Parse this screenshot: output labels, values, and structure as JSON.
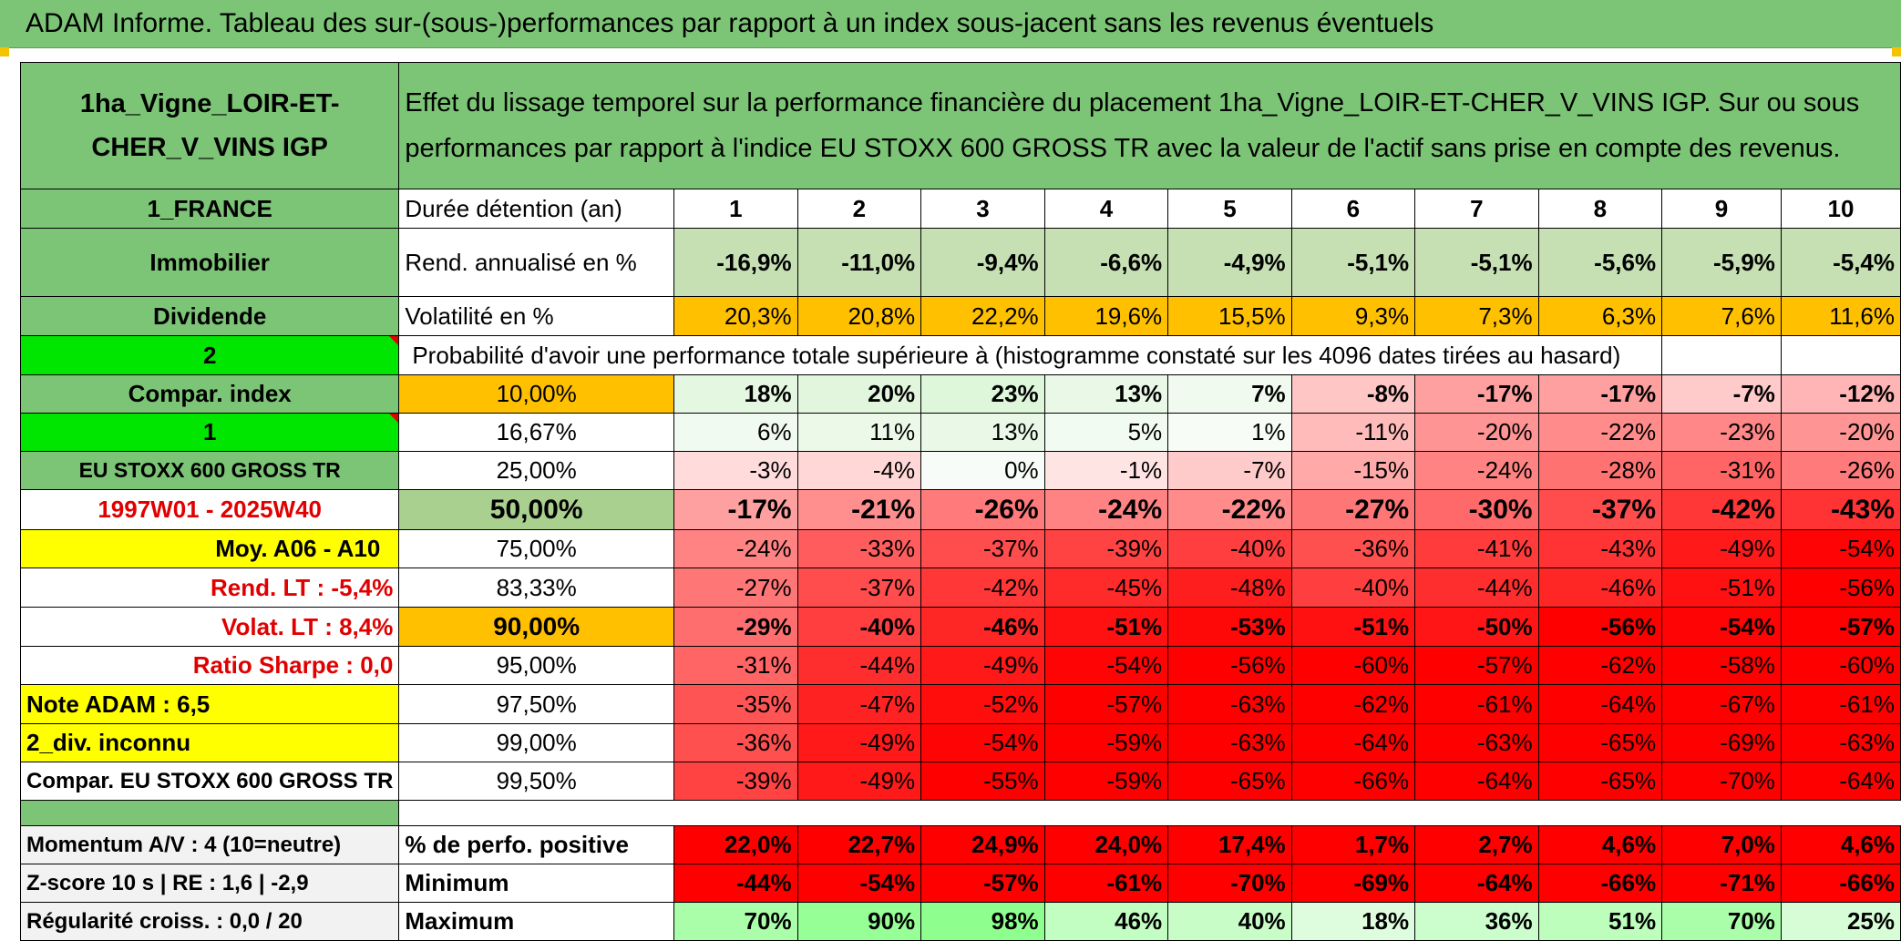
{
  "title": "ADAM Informe. Tableau des sur-(sous-)performances par rapport à un index sous-jacent sans les revenus éventuels",
  "asset_name": "1ha_Vigne_LOIR-ET-CHER_V_VINS IGP",
  "header_text": "Effet du lissage temporel sur la performance financière du placement 1ha_Vigne_LOIR-ET-CHER_V_VINS IGP. Sur ou sous performances par rapport à l'indice EU STOXX 600 GROSS TR avec la valeur de l'actif sans prise en compte des revenus.",
  "left": {
    "country": "1_FRANCE",
    "category": "Immobilier",
    "income": "Dividende",
    "sel2": "2",
    "compar": "Compar. index",
    "sel1": "1",
    "index_name": "EU STOXX 600 GROSS TR",
    "period": "1997W01 - 2025W40",
    "moy": "Moy. A06 - A10",
    "rend_lt": "Rend. LT :   -5,4%",
    "volat_lt": "Volat. LT :   8,4%",
    "sharpe": "Ratio Sharpe :    0,0",
    "note": "Note ADAM : 6,5",
    "div": "2_div. inconnu",
    "compar_full": "Compar. EU STOXX 600 GROSS TR",
    "momentum": "Momentum A/V : 4 (10=neutre)",
    "zscore": "Z-score 10 s | RE : 1,6 | -2,9",
    "regularite": "Régularité croiss. : 0,0 / 20"
  },
  "row_labels": {
    "duree": "Durée détention (an)",
    "rend": "Rend. annualisé en %",
    "vol": "Volatilité en %",
    "proba": "Probabilité d'avoir une performance totale supérieure à (histogramme constaté sur les 4096 dates tirées au hasard)",
    "pos": "% de perfo. positive",
    "min": "Minimum",
    "max": "Maximum"
  },
  "years": [
    "1",
    "2",
    "3",
    "4",
    "5",
    "6",
    "7",
    "8",
    "9",
    "10"
  ],
  "rend": [
    "-16,9%",
    "-11,0%",
    "-9,4%",
    "-6,6%",
    "-4,9%",
    "-5,1%",
    "-5,1%",
    "-5,6%",
    "-5,9%",
    "-5,4%"
  ],
  "vol": [
    "20,3%",
    "20,8%",
    "22,2%",
    "19,6%",
    "15,5%",
    "9,3%",
    "7,3%",
    "6,3%",
    "7,6%",
    "11,6%"
  ],
  "prob_rows": [
    {
      "pct": "10,00%",
      "values": [
        "18%",
        "20%",
        "23%",
        "13%",
        "7%",
        "-8%",
        "-17%",
        "-17%",
        "-7%",
        "-12%"
      ]
    },
    {
      "pct": "16,67%",
      "values": [
        "6%",
        "11%",
        "13%",
        "5%",
        "1%",
        "-11%",
        "-20%",
        "-22%",
        "-23%",
        "-20%"
      ]
    },
    {
      "pct": "25,00%",
      "values": [
        "-3%",
        "-4%",
        "0%",
        "-1%",
        "-7%",
        "-15%",
        "-24%",
        "-28%",
        "-31%",
        "-26%"
      ]
    },
    {
      "pct": "50,00%",
      "values": [
        "-17%",
        "-21%",
        "-26%",
        "-24%",
        "-22%",
        "-27%",
        "-30%",
        "-37%",
        "-42%",
        "-43%"
      ]
    },
    {
      "pct": "75,00%",
      "values": [
        "-24%",
        "-33%",
        "-37%",
        "-39%",
        "-40%",
        "-36%",
        "-41%",
        "-43%",
        "-49%",
        "-54%"
      ]
    },
    {
      "pct": "83,33%",
      "values": [
        "-27%",
        "-37%",
        "-42%",
        "-45%",
        "-48%",
        "-40%",
        "-44%",
        "-46%",
        "-51%",
        "-56%"
      ]
    },
    {
      "pct": "90,00%",
      "values": [
        "-29%",
        "-40%",
        "-46%",
        "-51%",
        "-53%",
        "-51%",
        "-50%",
        "-56%",
        "-54%",
        "-57%"
      ]
    },
    {
      "pct": "95,00%",
      "values": [
        "-31%",
        "-44%",
        "-49%",
        "-54%",
        "-56%",
        "-60%",
        "-57%",
        "-62%",
        "-58%",
        "-60%"
      ]
    },
    {
      "pct": "97,50%",
      "values": [
        "-35%",
        "-47%",
        "-52%",
        "-57%",
        "-63%",
        "-62%",
        "-61%",
        "-64%",
        "-67%",
        "-61%"
      ]
    },
    {
      "pct": "99,00%",
      "values": [
        "-36%",
        "-49%",
        "-54%",
        "-59%",
        "-63%",
        "-64%",
        "-63%",
        "-65%",
        "-69%",
        "-63%"
      ]
    },
    {
      "pct": "99,50%",
      "values": [
        "-39%",
        "-49%",
        "-55%",
        "-59%",
        "-65%",
        "-66%",
        "-64%",
        "-65%",
        "-70%",
        "-64%"
      ]
    }
  ],
  "pos": [
    "22,0%",
    "22,7%",
    "24,9%",
    "24,0%",
    "17,4%",
    "1,7%",
    "2,7%",
    "4,6%",
    "7,0%",
    "4,6%"
  ],
  "min": [
    "-44%",
    "-54%",
    "-57%",
    "-61%",
    "-70%",
    "-69%",
    "-64%",
    "-66%",
    "-71%",
    "-66%"
  ],
  "max": [
    "70%",
    "90%",
    "98%",
    "46%",
    "40%",
    "18%",
    "36%",
    "51%",
    "70%",
    "25%"
  ],
  "colors": {
    "green_header": "#7cc576",
    "rend_bg": "#c6e0b4",
    "vol_bg": "#ffc000",
    "selector_green": "#00e600",
    "yellow": "#ffff00",
    "label_red": "#e00000",
    "bright_red": "#ff0000"
  }
}
